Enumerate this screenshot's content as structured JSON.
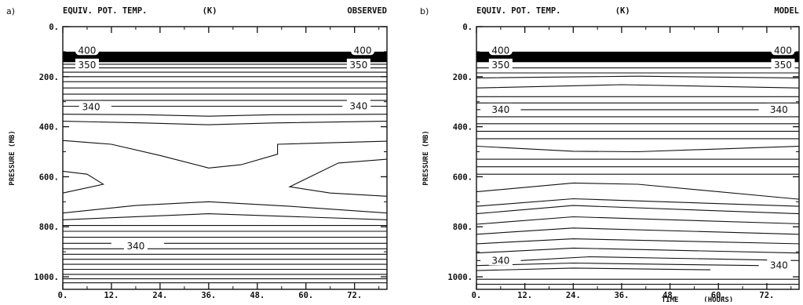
{
  "chart_data": [
    {
      "type": "line",
      "panel_label": "a)",
      "title_left": "EQUIV. POT. TEMP.",
      "title_units": "(K)",
      "title_right": "OBSERVED",
      "xlabel": "",
      "xlabel_units": "",
      "ylabel": "PRESSURE (MB)",
      "x_range": [
        0,
        80
      ],
      "y_range": [
        0,
        1050
      ],
      "y_inverted": true,
      "x_ticks": [
        "0.",
        "12.",
        "24.",
        "36.",
        "48.",
        "60.",
        "72."
      ],
      "x_tick_values": [
        0,
        12,
        24,
        36,
        48,
        60,
        72
      ],
      "y_ticks": [
        "0.",
        "200.",
        "400.",
        "600.",
        "800.",
        "1000."
      ],
      "y_tick_values": [
        0,
        200,
        400,
        600,
        800,
        1000
      ],
      "shaded_band": [
        100,
        142
      ],
      "contour_labels": [
        {
          "text": "400",
          "x": 6,
          "y": 95
        },
        {
          "text": "400",
          "x": 74,
          "y": 95
        },
        {
          "text": "350",
          "x": 6,
          "y": 153
        },
        {
          "text": "350",
          "x": 73,
          "y": 153
        },
        {
          "text": "340",
          "x": 7,
          "y": 322
        },
        {
          "text": "340",
          "x": 73,
          "y": 318
        },
        {
          "text": "340",
          "x": 18,
          "y": 877
        }
      ],
      "series": [
        {
          "values": [
            [
              0,
              150
            ],
            [
              80,
              150
            ]
          ]
        },
        {
          "values": [
            [
              0,
              165
            ],
            [
              80,
              165
            ]
          ]
        },
        {
          "values": [
            [
              0,
              182
            ],
            [
              80,
              182
            ]
          ]
        },
        {
          "values": [
            [
              0,
              200
            ],
            [
              80,
              200
            ]
          ]
        },
        {
          "values": [
            [
              0,
              220
            ],
            [
              80,
              220
            ]
          ]
        },
        {
          "values": [
            [
              0,
              245
            ],
            [
              80,
              245
            ]
          ]
        },
        {
          "values": [
            [
              0,
              270
            ],
            [
              80,
              270
            ]
          ]
        },
        {
          "values": [
            [
              0,
              295
            ],
            [
              80,
              295
            ]
          ]
        },
        {
          "values": [
            [
              0,
              318
            ],
            [
              4,
              318
            ]
          ]
        },
        {
          "values": [
            [
              12,
              318
            ],
            [
              69,
              318
            ]
          ]
        },
        {
          "values": [
            [
              76,
              318
            ],
            [
              80,
              318
            ]
          ]
        },
        {
          "values": [
            [
              0,
              350
            ],
            [
              20,
              352
            ],
            [
              36,
              358
            ],
            [
              52,
              352
            ],
            [
              80,
              350
            ]
          ]
        },
        {
          "values": [
            [
              0,
              378
            ],
            [
              20,
              385
            ],
            [
              36,
              392
            ],
            [
              52,
              385
            ],
            [
              80,
              378
            ]
          ]
        },
        {
          "values": [
            [
              0,
              455
            ],
            [
              12,
              470
            ],
            [
              24,
              515
            ],
            [
              36,
              565
            ],
            [
              44,
              552
            ],
            [
              53,
              510
            ],
            [
              53,
              470
            ],
            [
              80,
              458
            ]
          ]
        },
        {
          "values": [
            [
              0,
              578
            ],
            [
              6,
              590
            ],
            [
              10,
              630
            ],
            [
              0,
              665
            ]
          ]
        },
        {
          "values": [
            [
              80,
              530
            ],
            [
              68,
              545
            ],
            [
              56,
              640
            ],
            [
              66,
              665
            ],
            [
              80,
              678
            ]
          ]
        },
        {
          "values": [
            [
              0,
              745
            ],
            [
              18,
              715
            ],
            [
              36,
              700
            ],
            [
              56,
              718
            ],
            [
              80,
              745
            ]
          ]
        },
        {
          "values": [
            [
              0,
              772
            ],
            [
              36,
              748
            ],
            [
              80,
              772
            ]
          ]
        },
        {
          "values": [
            [
              0,
              795
            ],
            [
              80,
              795
            ]
          ]
        },
        {
          "values": [
            [
              0,
              818
            ],
            [
              80,
              818
            ]
          ]
        },
        {
          "values": [
            [
              0,
              842
            ],
            [
              80,
              842
            ]
          ]
        },
        {
          "values": [
            [
              0,
              866
            ],
            [
              12,
              866
            ]
          ]
        },
        {
          "values": [
            [
              25,
              866
            ],
            [
              80,
              866
            ]
          ]
        },
        {
          "values": [
            [
              0,
              888
            ],
            [
              80,
              888
            ]
          ]
        },
        {
          "values": [
            [
              0,
              910
            ],
            [
              80,
              910
            ]
          ]
        },
        {
          "values": [
            [
              0,
              930
            ],
            [
              80,
              930
            ]
          ]
        },
        {
          "values": [
            [
              0,
              950
            ],
            [
              80,
              950
            ]
          ]
        },
        {
          "values": [
            [
              0,
              970
            ],
            [
              80,
              970
            ]
          ]
        },
        {
          "values": [
            [
              0,
              990
            ],
            [
              80,
              990
            ]
          ]
        },
        {
          "values": [
            [
              0,
              1008
            ],
            [
              80,
              1008
            ]
          ]
        },
        {
          "values": [
            [
              0,
              1024
            ],
            [
              80,
              1024
            ]
          ]
        }
      ]
    },
    {
      "type": "line",
      "panel_label": "b)",
      "title_left": "EQUIV. POT. TEMP.",
      "title_units": "(K)",
      "title_right": "MODEL",
      "xlabel": "TIME",
      "xlabel_units": "(HOURS)",
      "ylabel": "PRESSURE (MB)",
      "x_range": [
        0,
        80
      ],
      "y_range": [
        0,
        1050
      ],
      "y_inverted": true,
      "x_ticks": [
        "0.",
        "12.",
        "24.",
        "36.",
        "48.",
        "60.",
        "72."
      ],
      "x_tick_values": [
        0,
        12,
        24,
        36,
        48,
        60,
        72
      ],
      "y_ticks": [
        "0.",
        "200.",
        "400.",
        "600.",
        "800.",
        "1000."
      ],
      "y_tick_values": [
        0,
        200,
        400,
        600,
        800,
        1000
      ],
      "shaded_band": [
        100,
        142
      ],
      "contour_labels": [
        {
          "text": "400",
          "x": 6,
          "y": 95
        },
        {
          "text": "400",
          "x": 76,
          "y": 95
        },
        {
          "text": "350",
          "x": 6,
          "y": 153
        },
        {
          "text": "350",
          "x": 76,
          "y": 153
        },
        {
          "text": "340",
          "x": 6,
          "y": 332
        },
        {
          "text": "340",
          "x": 75,
          "y": 332
        },
        {
          "text": "340",
          "x": 6,
          "y": 935
        },
        {
          "text": "340",
          "x": 75,
          "y": 955
        }
      ],
      "series": [
        {
          "values": [
            [
              0,
              165
            ],
            [
              80,
              165
            ]
          ]
        },
        {
          "values": [
            [
              0,
              185
            ],
            [
              80,
              185
            ]
          ]
        },
        {
          "values": [
            [
              0,
              205
            ],
            [
              40,
              198
            ],
            [
              80,
              205
            ]
          ]
        },
        {
          "values": [
            [
              0,
              245
            ],
            [
              36,
              232
            ],
            [
              80,
              245
            ]
          ]
        },
        {
          "values": [
            [
              0,
              280
            ],
            [
              80,
              280
            ]
          ]
        },
        {
          "values": [
            [
              0,
              305
            ],
            [
              80,
              305
            ]
          ]
        },
        {
          "values": [
            [
              0,
              332
            ],
            [
              1,
              332
            ]
          ]
        },
        {
          "values": [
            [
              11,
              332
            ],
            [
              70,
              332
            ]
          ]
        },
        {
          "values": [
            [
              0,
              360
            ],
            [
              80,
              360
            ]
          ]
        },
        {
          "values": [
            [
              0,
              388
            ],
            [
              80,
              388
            ]
          ]
        },
        {
          "values": [
            [
              0,
              418
            ],
            [
              80,
              418
            ]
          ]
        },
        {
          "values": [
            [
              0,
              448
            ],
            [
              80,
              448
            ]
          ]
        },
        {
          "values": [
            [
              0,
              478
            ],
            [
              24,
              498
            ],
            [
              40,
              500
            ],
            [
              80,
              478
            ]
          ]
        },
        {
          "values": [
            [
              0,
              530
            ],
            [
              80,
              530
            ]
          ]
        },
        {
          "values": [
            [
              0,
              560
            ],
            [
              80,
              560
            ]
          ]
        },
        {
          "values": [
            [
              0,
              590
            ],
            [
              80,
              590
            ]
          ]
        },
        {
          "values": [
            [
              0,
              660
            ],
            [
              24,
              625
            ],
            [
              40,
              630
            ],
            [
              80,
              690
            ]
          ]
        },
        {
          "values": [
            [
              0,
              718
            ],
            [
              24,
              688
            ],
            [
              80,
              718
            ]
          ]
        },
        {
          "values": [
            [
              0,
              748
            ],
            [
              24,
              715
            ],
            [
              80,
              748
            ]
          ]
        },
        {
          "values": [
            [
              0,
              790
            ],
            [
              24,
              760
            ],
            [
              80,
              788
            ]
          ]
        },
        {
          "values": [
            [
              0,
              830
            ],
            [
              24,
              805
            ],
            [
              80,
              830
            ]
          ]
        },
        {
          "values": [
            [
              0,
              868
            ],
            [
              24,
              848
            ],
            [
              80,
              868
            ]
          ]
        },
        {
          "values": [
            [
              0,
              905
            ],
            [
              24,
              885
            ],
            [
              80,
              905
            ]
          ]
        },
        {
          "values": [
            [
              0,
              935
            ],
            [
              1,
              935
            ]
          ]
        },
        {
          "values": [
            [
              11,
              935
            ],
            [
              28,
              920
            ],
            [
              80,
              935
            ]
          ]
        },
        {
          "values": [
            [
              0,
              955
            ],
            [
              24,
              945
            ],
            [
              70,
              955
            ]
          ]
        },
        {
          "values": [
            [
              0,
              975
            ],
            [
              24,
              965
            ],
            [
              58,
              972
            ]
          ]
        },
        {
          "values": [
            [
              0,
              1010
            ],
            [
              80,
              1010
            ]
          ]
        },
        {
          "values": [
            [
              0,
              1030
            ],
            [
              80,
              1030
            ]
          ]
        }
      ]
    }
  ]
}
